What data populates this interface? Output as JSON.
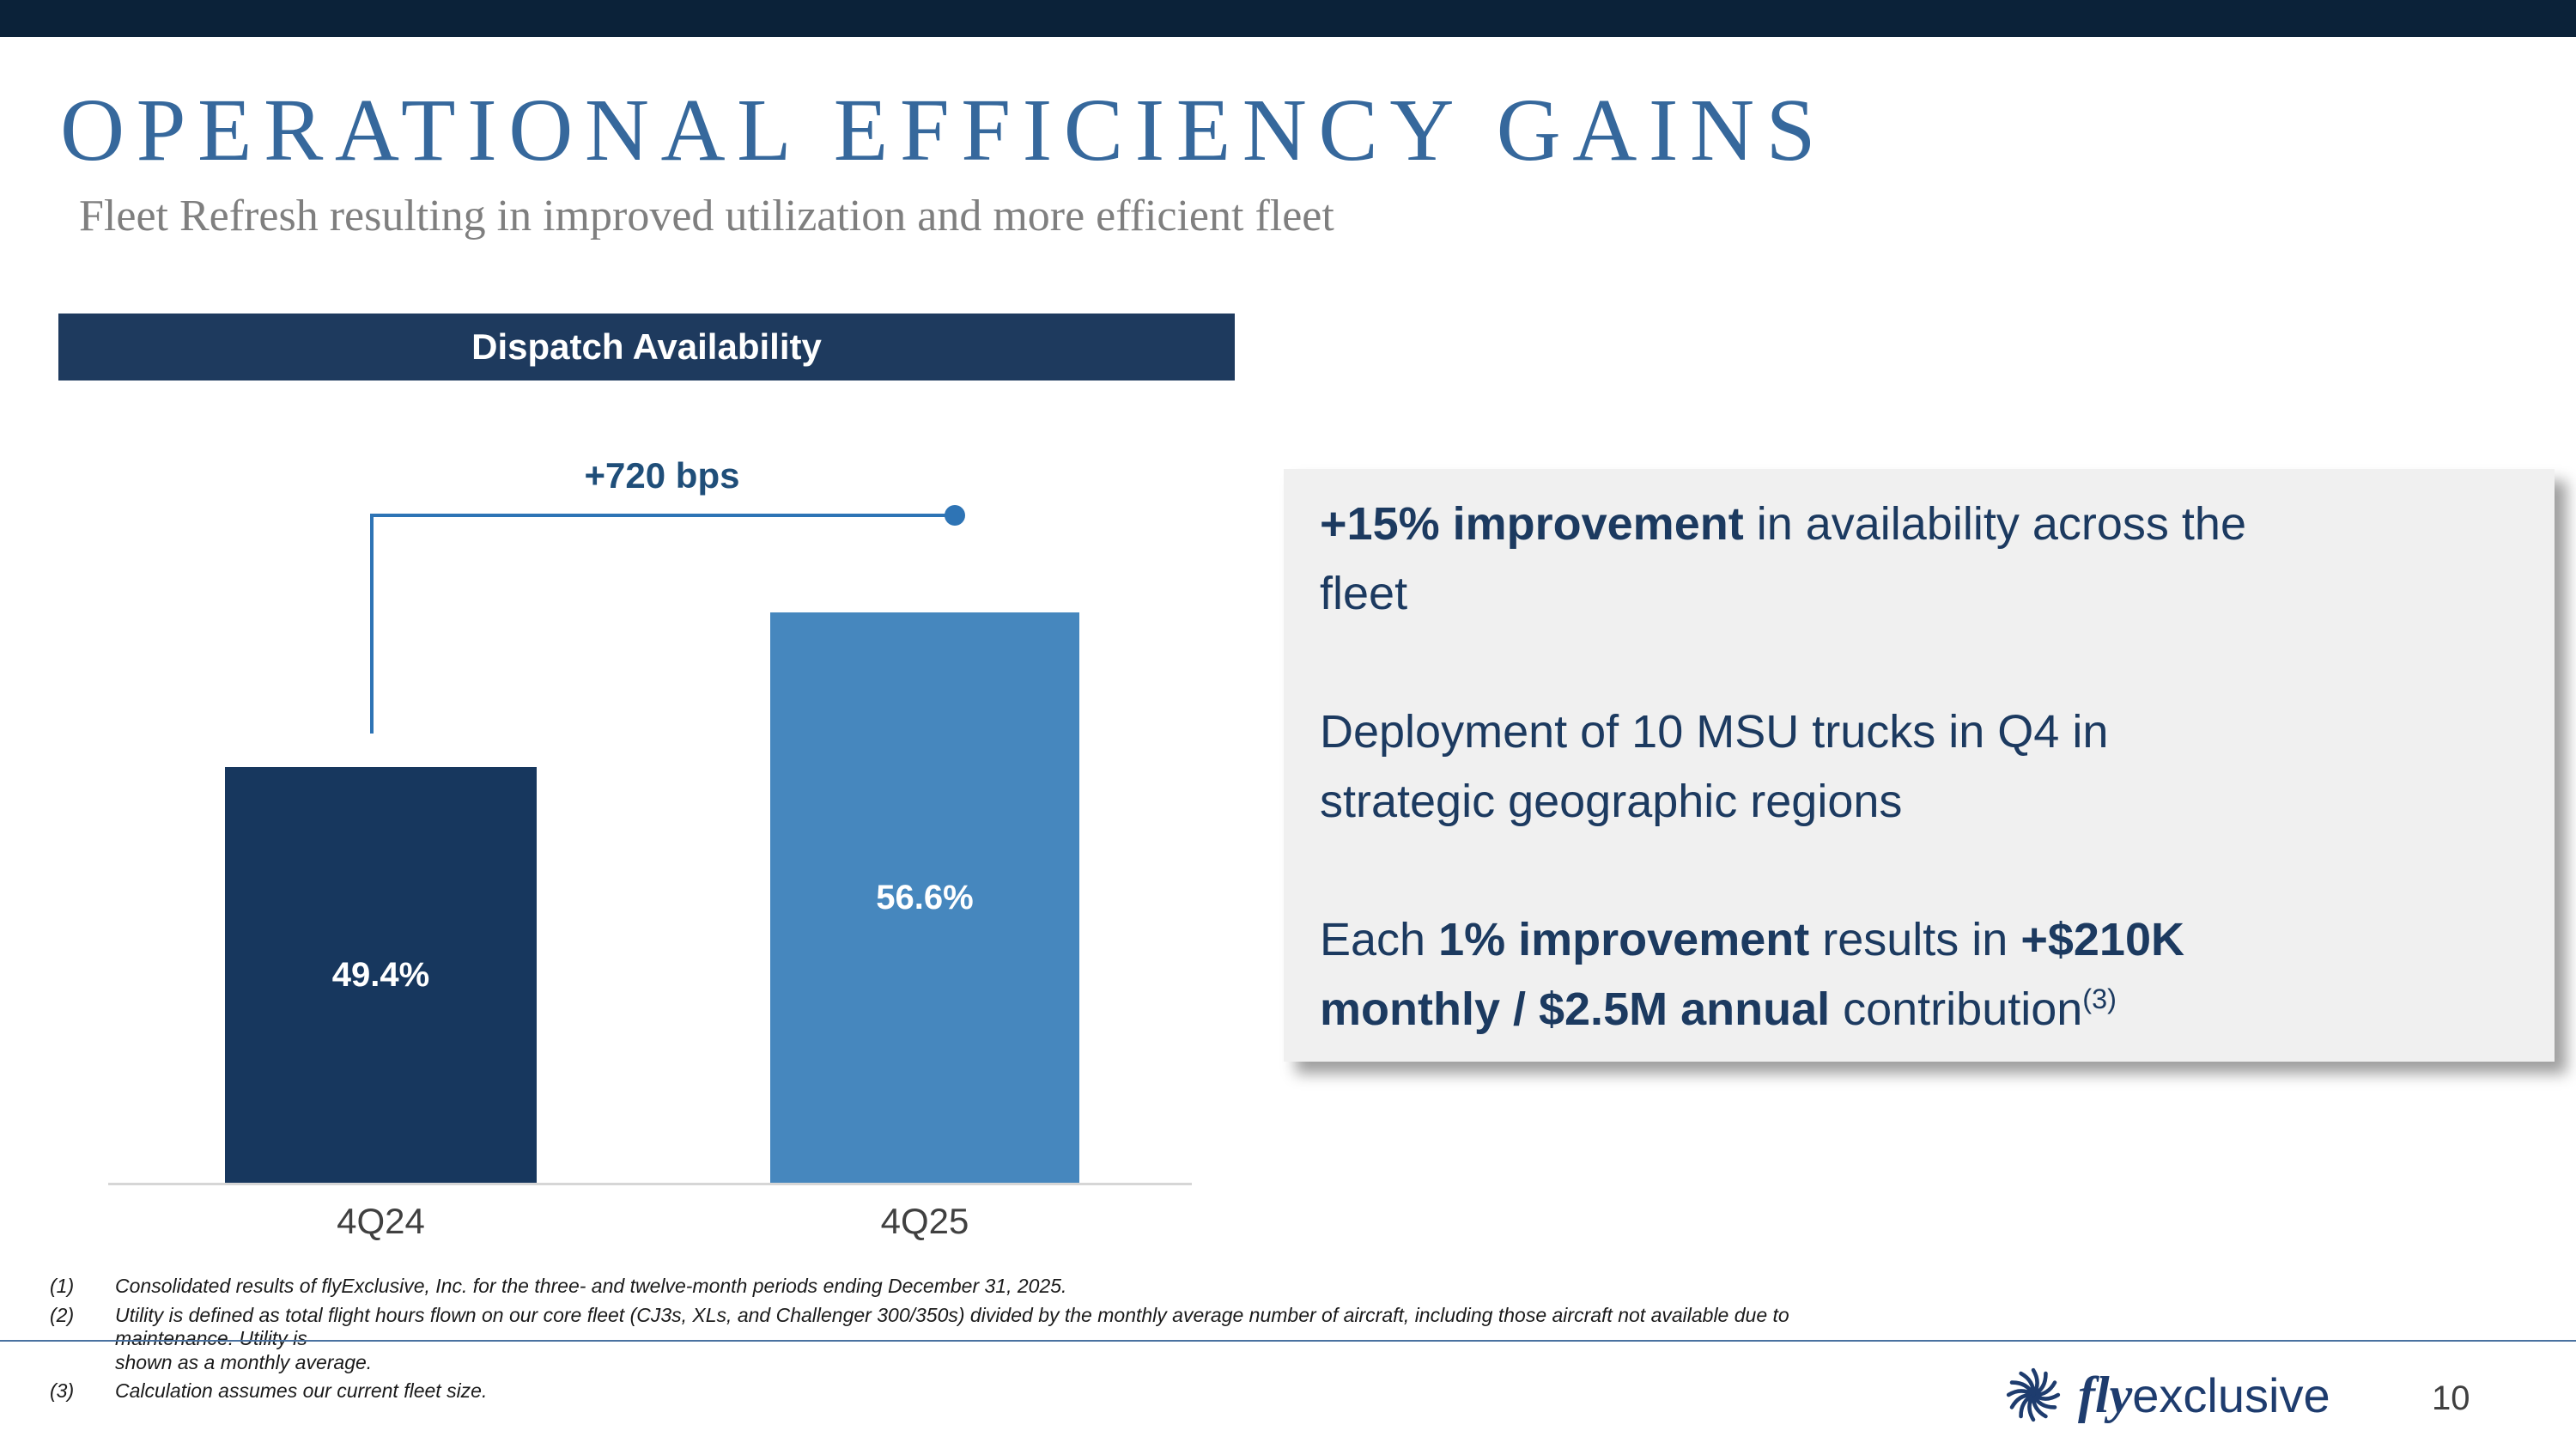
{
  "slide": {
    "title": "OPERATIONAL EFFICIENCY GAINS",
    "subtitle": "Fleet Refresh resulting in improved utilization and more efficient fleet",
    "page_number": "10"
  },
  "chart_data": {
    "type": "bar",
    "title": "Dispatch Availability",
    "categories": [
      "4Q24",
      "4Q25"
    ],
    "values": [
      49.4,
      56.6
    ],
    "value_labels": [
      "49.4%",
      "56.6%"
    ],
    "annotation": "+720 bps",
    "ylim": [
      30,
      70
    ],
    "grid": false,
    "legend": "none",
    "colors": [
      "#17375e",
      "#4687be"
    ]
  },
  "callout": {
    "p1_bold": "+15% improvement",
    "p1_rest": " in availability across the\nfleet",
    "p2": "Deployment of 10 MSU trucks in Q4 in\nstrategic geographic regions",
    "p3_a": "Each ",
    "p3_b": "1% improvement",
    "p3_c": " results in ",
    "p3_d": "+$210K\nmonthly / $2.5M annual",
    "p3_e": " contribution",
    "p3_sup": "(3)"
  },
  "footnotes": [
    {
      "num": "(1)",
      "text": "Consolidated results of flyExclusive, Inc. for the three- and twelve-month periods ending December 31, 2025."
    },
    {
      "num": "(2)",
      "text": "Utility is defined as total flight hours flown on our core fleet (CJ3s, XLs, and Challenger 300/350s) divided by the monthly average number of aircraft, including those aircraft not available due to maintenance.  Utility is\nshown as a monthly average."
    },
    {
      "num": "(3)",
      "text": "Calculation assumes our current fleet size."
    }
  ],
  "logo": {
    "fly": "fly",
    "exclusive": "exclusive"
  },
  "colors": {
    "top_bar": "#0b2239",
    "title": "#36689c",
    "panel_header_bg": "#1e3a5e",
    "bar_4q24": "#17375e",
    "bar_4q25": "#4687be",
    "connector": "#2e74b5",
    "annotation_text": "#1f4e79",
    "callout_bg": "#f0f0f0",
    "callout_text": "#1c3a60"
  }
}
